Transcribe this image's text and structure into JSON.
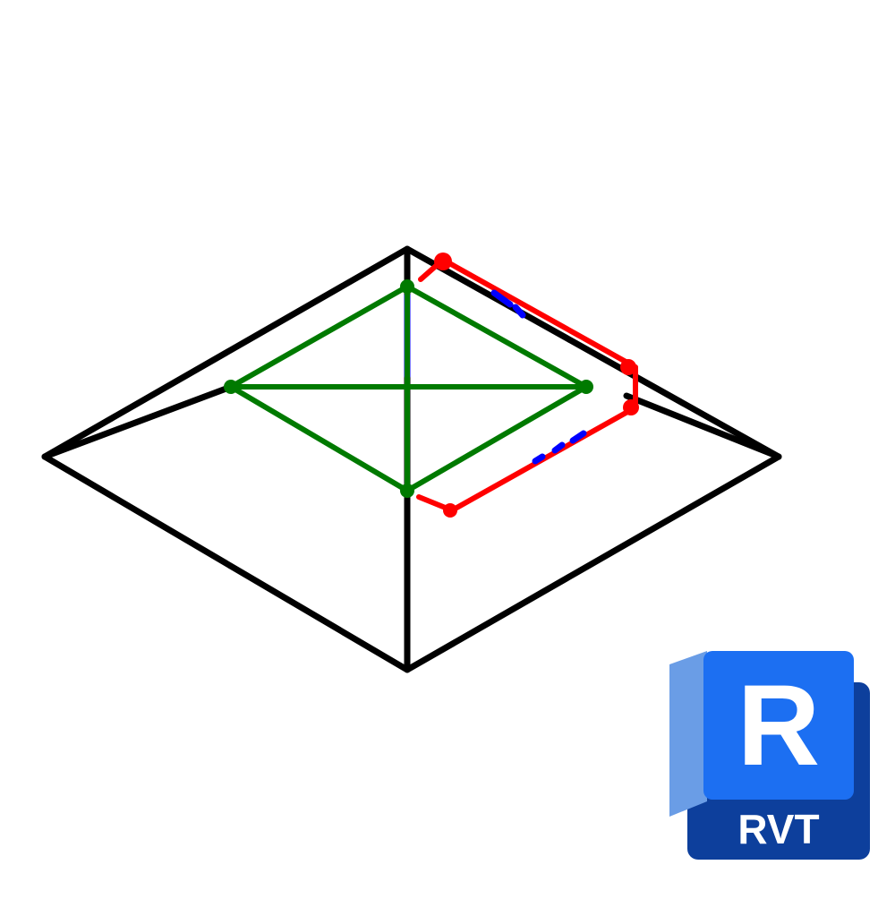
{
  "thumbnail": {
    "description_type": "revit-family-preview",
    "line_colors": {
      "outline": "#000000",
      "reference_green": "#007a00",
      "reference_red": "#ff0000",
      "reference_blue": "#0000ff"
    }
  },
  "badge": {
    "letter": "R",
    "extension": "RVT",
    "colors": {
      "front": "#1c6ff2",
      "side": "#6a9de6",
      "back": "#0d3f9c",
      "text": "#ffffff"
    }
  }
}
